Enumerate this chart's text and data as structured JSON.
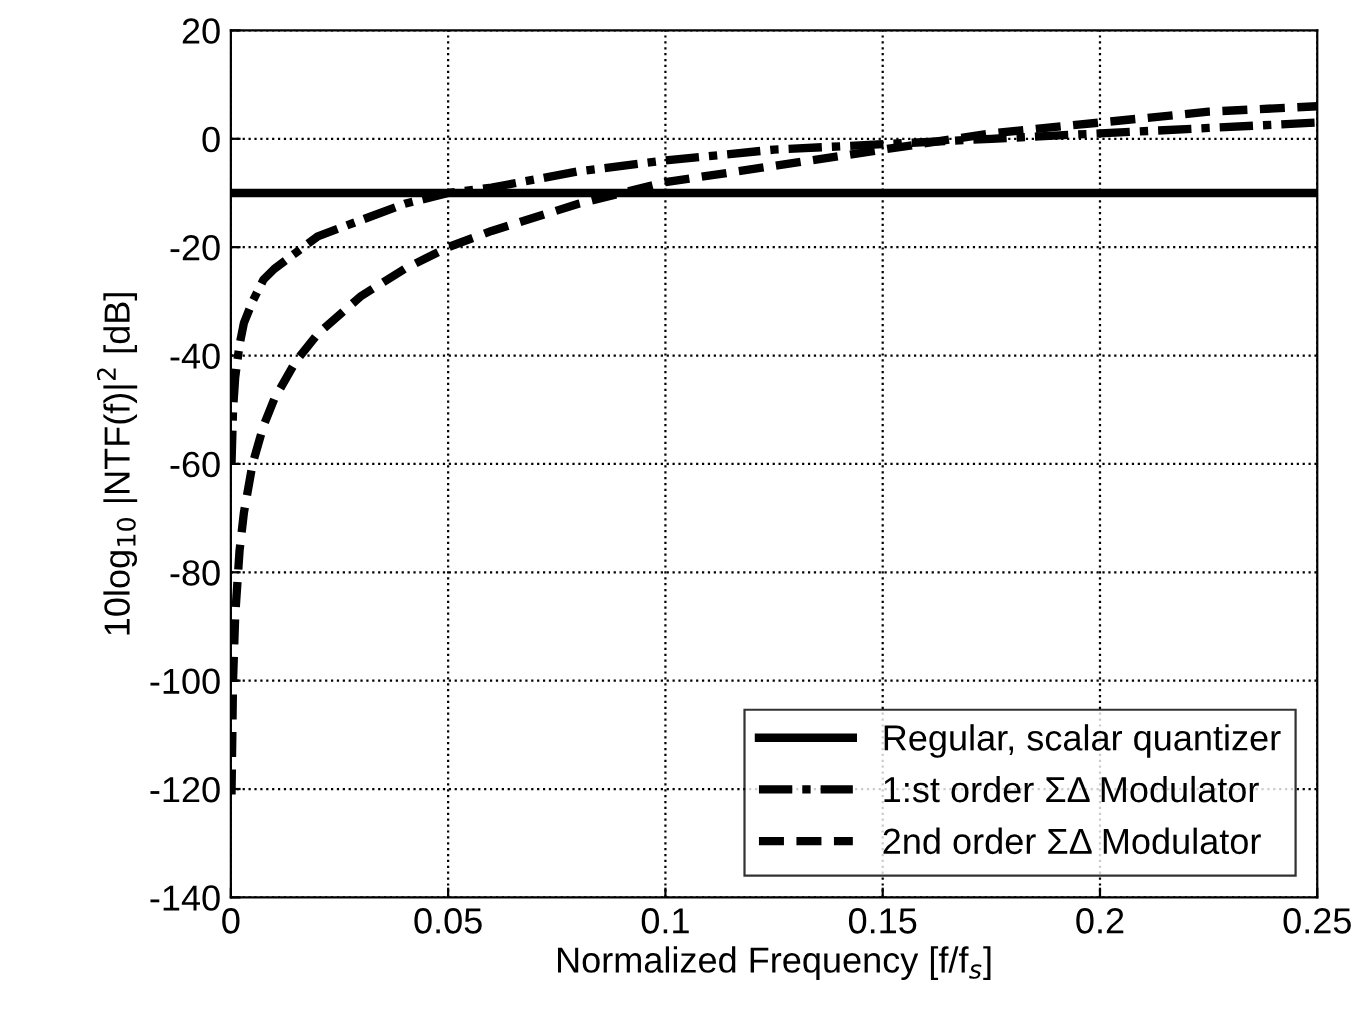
{
  "chart_data": {
    "type": "line",
    "xlabel": "Normalized Frequency [f/f$_{s}$]",
    "ylabel": "10log$_{10}$ |NTF(f)|$^{2}$ [dB]",
    "xlim": [
      0,
      0.25
    ],
    "ylim": [
      -140,
      20
    ],
    "xticks": [
      0,
      0.05,
      0.1,
      0.15,
      0.2,
      0.25
    ],
    "yticks": [
      -140,
      -120,
      -100,
      -80,
      -60,
      -40,
      -20,
      0,
      20
    ],
    "grid": true,
    "legend": "bottom right",
    "marker": "none",
    "series": [
      {
        "name": "Regular, scalar quantizer",
        "color": "#000000",
        "line_style": "solid",
        "x": [
          0,
          0.25
        ],
        "values": [
          -10,
          -10
        ]
      },
      {
        "name": "1:st order ΣΔ Modulator",
        "color": "#000000",
        "line_style": "dashdot",
        "x": [
          0.00015,
          0.0005,
          0.001,
          0.002,
          0.003,
          0.005,
          0.0075,
          0.01,
          0.015,
          0.02,
          0.03,
          0.04,
          0.05,
          0.06,
          0.08,
          0.1,
          0.125,
          0.15,
          0.175,
          0.2,
          0.225,
          0.25
        ],
        "values": [
          -60,
          -50,
          -44,
          -38,
          -34,
          -30,
          -26,
          -24,
          -21,
          -18,
          -15,
          -12,
          -10,
          -9,
          -6,
          -4,
          -2,
          -1,
          0,
          1,
          2,
          3
        ]
      },
      {
        "name": "2nd order ΣΔ Modulator",
        "color": "#000000",
        "line_style": "dashed",
        "x": [
          0.00015,
          0.0005,
          0.001,
          0.002,
          0.003,
          0.005,
          0.0075,
          0.01,
          0.015,
          0.02,
          0.03,
          0.04,
          0.05,
          0.06,
          0.08,
          0.1,
          0.125,
          0.15,
          0.175,
          0.2,
          0.225,
          0.25
        ],
        "values": [
          -121,
          -100,
          -88,
          -76,
          -69,
          -60,
          -53,
          -48,
          -41,
          -36,
          -29,
          -24,
          -20,
          -17,
          -12,
          -8,
          -5,
          -2,
          1,
          3,
          5,
          6
        ]
      }
    ]
  }
}
